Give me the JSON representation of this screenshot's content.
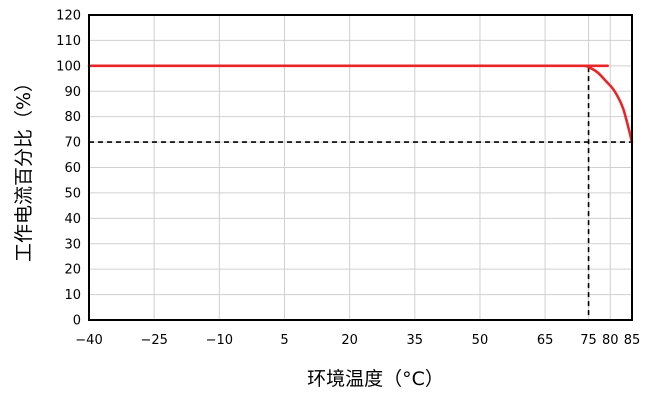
{
  "chart_data": {
    "type": "line",
    "title": "",
    "xlabel": "环境温度（°C）",
    "ylabel": "工作电流百分比（%）",
    "xlim": [
      -40,
      85
    ],
    "ylim": [
      0,
      120
    ],
    "x_ticks": [
      -40,
      -25,
      -10,
      5,
      20,
      35,
      50,
      65,
      75,
      80,
      85
    ],
    "x_tick_labels": [
      "−40",
      "−25",
      "−10",
      "5",
      "20",
      "35",
      "50",
      "65",
      "75",
      "80",
      "85"
    ],
    "y_ticks": [
      0,
      10,
      20,
      30,
      40,
      50,
      60,
      70,
      80,
      90,
      100,
      110,
      120
    ],
    "y_tick_labels": [
      "0",
      "10",
      "20",
      "30",
      "40",
      "50",
      "60",
      "70",
      "80",
      "90",
      "100",
      "110",
      "120"
    ],
    "grid": true,
    "series": [
      {
        "color": "#e8262a",
        "x": [
          -40,
          70,
          74,
          75,
          77,
          79,
          81,
          83,
          85
        ],
        "y": [
          100,
          100,
          100,
          99.5,
          97.5,
          94,
          90,
          83,
          70
        ]
      }
    ],
    "reference_lines": [
      {
        "orientation": "horizontal",
        "y": 70,
        "x_range": [
          -40,
          85
        ]
      },
      {
        "orientation": "vertical",
        "x": 75,
        "y_range": [
          0,
          99.5
        ]
      }
    ]
  }
}
